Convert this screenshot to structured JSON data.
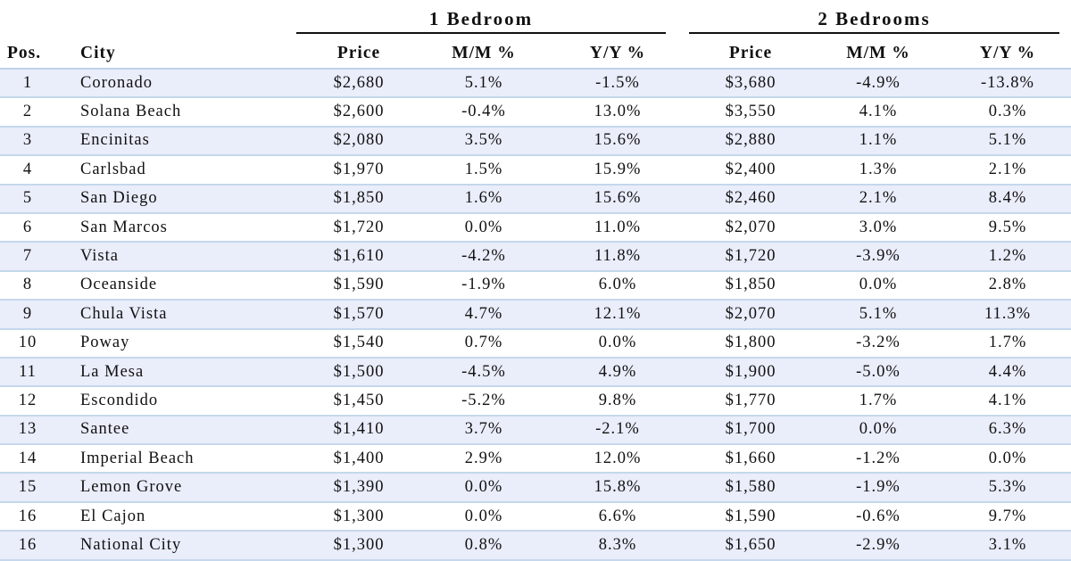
{
  "group_headers": {
    "one_bedroom": "1 Bedroom",
    "two_bedrooms": "2 Bedrooms"
  },
  "columns": {
    "pos": "Pos.",
    "city": "City",
    "price1": "Price",
    "mm1": "M/M %",
    "yy1": "Y/Y %",
    "price2": "Price",
    "mm2": "M/M %",
    "yy2": "Y/Y %"
  },
  "rows": [
    {
      "pos": "1",
      "city": "Coronado",
      "p1": "$2,680",
      "mm1": "5.1%",
      "yy1": "-1.5%",
      "p2": "$3,680",
      "mm2": "-4.9%",
      "yy2": "-13.8%"
    },
    {
      "pos": "2",
      "city": "Solana Beach",
      "p1": "$2,600",
      "mm1": "-0.4%",
      "yy1": "13.0%",
      "p2": "$3,550",
      "mm2": "4.1%",
      "yy2": "0.3%"
    },
    {
      "pos": "3",
      "city": "Encinitas",
      "p1": "$2,080",
      "mm1": "3.5%",
      "yy1": "15.6%",
      "p2": "$2,880",
      "mm2": "1.1%",
      "yy2": "5.1%"
    },
    {
      "pos": "4",
      "city": "Carlsbad",
      "p1": "$1,970",
      "mm1": "1.5%",
      "yy1": "15.9%",
      "p2": "$2,400",
      "mm2": "1.3%",
      "yy2": "2.1%"
    },
    {
      "pos": "5",
      "city": "San Diego",
      "p1": "$1,850",
      "mm1": "1.6%",
      "yy1": "15.6%",
      "p2": "$2,460",
      "mm2": "2.1%",
      "yy2": "8.4%"
    },
    {
      "pos": "6",
      "city": "San Marcos",
      "p1": "$1,720",
      "mm1": "0.0%",
      "yy1": "11.0%",
      "p2": "$2,070",
      "mm2": "3.0%",
      "yy2": "9.5%"
    },
    {
      "pos": "7",
      "city": "Vista",
      "p1": "$1,610",
      "mm1": "-4.2%",
      "yy1": "11.8%",
      "p2": "$1,720",
      "mm2": "-3.9%",
      "yy2": "1.2%"
    },
    {
      "pos": "8",
      "city": "Oceanside",
      "p1": "$1,590",
      "mm1": "-1.9%",
      "yy1": "6.0%",
      "p2": "$1,850",
      "mm2": "0.0%",
      "yy2": "2.8%"
    },
    {
      "pos": "9",
      "city": "Chula Vista",
      "p1": "$1,570",
      "mm1": "4.7%",
      "yy1": "12.1%",
      "p2": "$2,070",
      "mm2": "5.1%",
      "yy2": "11.3%"
    },
    {
      "pos": "10",
      "city": "Poway",
      "p1": "$1,540",
      "mm1": "0.7%",
      "yy1": "0.0%",
      "p2": "$1,800",
      "mm2": "-3.2%",
      "yy2": "1.7%"
    },
    {
      "pos": "11",
      "city": "La Mesa",
      "p1": "$1,500",
      "mm1": "-4.5%",
      "yy1": "4.9%",
      "p2": "$1,900",
      "mm2": "-5.0%",
      "yy2": "4.4%"
    },
    {
      "pos": "12",
      "city": "Escondido",
      "p1": "$1,450",
      "mm1": "-5.2%",
      "yy1": "9.8%",
      "p2": "$1,770",
      "mm2": "1.7%",
      "yy2": "4.1%"
    },
    {
      "pos": "13",
      "city": "Santee",
      "p1": "$1,410",
      "mm1": "3.7%",
      "yy1": "-2.1%",
      "p2": "$1,700",
      "mm2": "0.0%",
      "yy2": "6.3%"
    },
    {
      "pos": "14",
      "city": "Imperial Beach",
      "p1": "$1,400",
      "mm1": "2.9%",
      "yy1": "12.0%",
      "p2": "$1,660",
      "mm2": "-1.2%",
      "yy2": "0.0%"
    },
    {
      "pos": "15",
      "city": "Lemon Grove",
      "p1": "$1,390",
      "mm1": "0.0%",
      "yy1": "15.8%",
      "p2": "$1,580",
      "mm2": "-1.9%",
      "yy2": "5.3%"
    },
    {
      "pos": "16",
      "city": "El Cajon",
      "p1": "$1,300",
      "mm1": "0.0%",
      "yy1": "6.6%",
      "p2": "$1,590",
      "mm2": "-0.6%",
      "yy2": "9.7%"
    },
    {
      "pos": "16",
      "city": "National City",
      "p1": "$1,300",
      "mm1": "0.8%",
      "yy1": "8.3%",
      "p2": "$1,650",
      "mm2": "-2.9%",
      "yy2": "3.1%"
    }
  ],
  "colors": {
    "row_band": "#eaedfa",
    "row_rule": "#c5d8ec",
    "group_rule": "#111111"
  }
}
